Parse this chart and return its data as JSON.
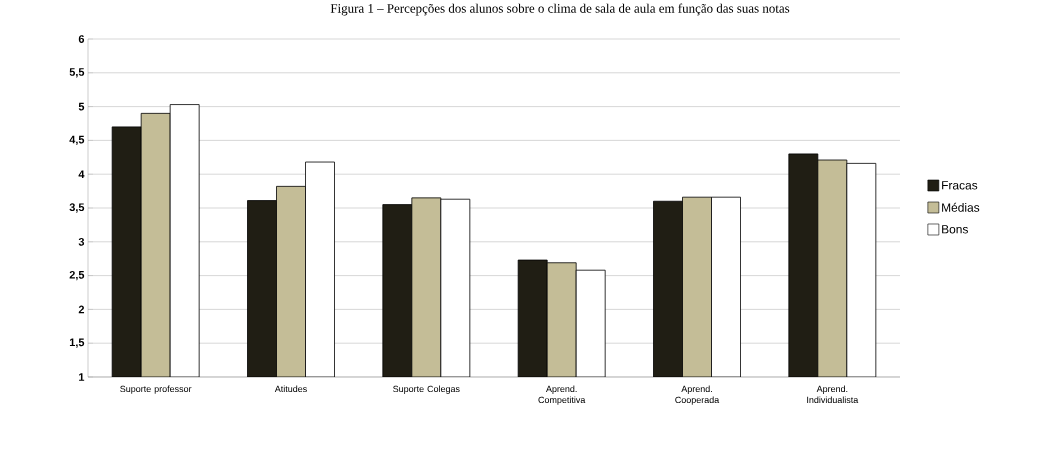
{
  "chart_data": {
    "type": "bar",
    "title": "Figura 1 – Percepções dos alunos sobre o clima de sala de aula em função das suas notas",
    "categories": [
      "Suporte professor",
      "Atitudes",
      "Suporte Colegas",
      "Aprend. Competitiva",
      "Aprend. Cooperada",
      "Aprend. Individualista"
    ],
    "series": [
      {
        "name": "Fracas",
        "color": "#201e14",
        "values": [
          4.7,
          3.61,
          3.55,
          2.73,
          3.6,
          4.3
        ]
      },
      {
        "name": "Médias",
        "color": "#c4bd97",
        "values": [
          4.9,
          3.82,
          3.65,
          2.69,
          3.66,
          4.21
        ]
      },
      {
        "name": "Bons",
        "color": "#ffffff",
        "values": [
          5.03,
          4.18,
          3.63,
          2.58,
          3.66,
          4.16
        ]
      }
    ],
    "ylim": [
      1,
      6
    ],
    "yticks": [
      1,
      {
        "value": 1.5,
        "label": "1,5"
      },
      2,
      {
        "value": 2.5,
        "label": "2,5"
      },
      3,
      {
        "value": 3.5,
        "label": "3,5"
      },
      4,
      {
        "value": 4.5,
        "label": "4,5"
      },
      5,
      {
        "value": 5.5,
        "label": "5,5"
      },
      6
    ],
    "grid": "y",
    "legend": "right"
  }
}
